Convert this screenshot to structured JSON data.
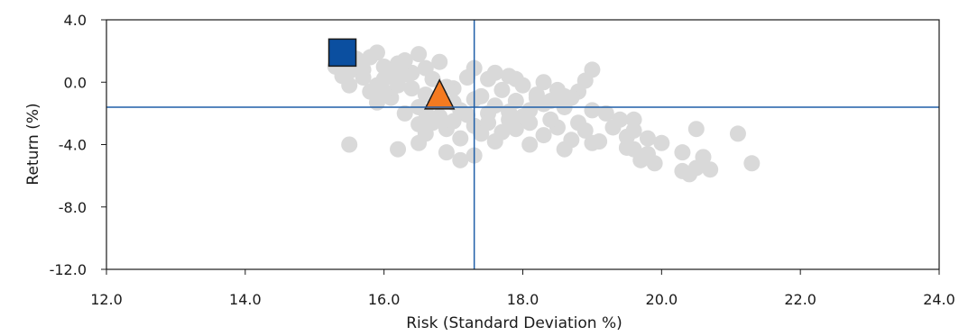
{
  "chart_data": {
    "type": "scatter",
    "xlabel": "Risk (Standard Deviation %)",
    "ylabel": "Return (%)",
    "xlim": [
      12.0,
      24.0
    ],
    "ylim": [
      -12.0,
      4.0
    ],
    "x_ticks": [
      "12.0",
      "14.0",
      "16.0",
      "18.0",
      "20.0",
      "22.0",
      "24.0"
    ],
    "y_ticks": [
      "4.0",
      "0.0",
      "-4.0",
      "-8.0",
      "-12.0"
    ],
    "grid": false,
    "reference_lines": {
      "x": 17.3,
      "y": -1.6,
      "color": "#1f5fa8"
    },
    "colors": {
      "cloud": "#d9d9d9",
      "square": "#0b4fa0",
      "triangle": "#f47a20",
      "frame": "#1a1a1a"
    },
    "cloud_points": [
      [
        15.3,
        1.0
      ],
      [
        15.4,
        0.4
      ],
      [
        15.5,
        -0.2
      ],
      [
        15.6,
        1.5
      ],
      [
        15.7,
        0.8
      ],
      [
        15.8,
        -0.6
      ],
      [
        15.9,
        1.9
      ],
      [
        16.0,
        0.2
      ],
      [
        16.1,
        -1.0
      ],
      [
        16.2,
        1.2
      ],
      [
        16.3,
        0.5
      ],
      [
        16.4,
        -0.4
      ],
      [
        16.5,
        1.8
      ],
      [
        16.6,
        0.9
      ],
      [
        15.9,
        -1.3
      ],
      [
        16.0,
        1.0
      ],
      [
        16.2,
        -0.2
      ],
      [
        16.4,
        0.6
      ],
      [
        16.6,
        -0.8
      ],
      [
        16.8,
        1.3
      ],
      [
        16.5,
        -1.6
      ],
      [
        16.3,
        -2.0
      ],
      [
        16.5,
        -2.7
      ],
      [
        16.6,
        -3.3
      ],
      [
        16.8,
        -2.2
      ],
      [
        16.9,
        -3.0
      ],
      [
        17.0,
        -2.5
      ],
      [
        17.1,
        -3.6
      ],
      [
        17.3,
        -2.8
      ],
      [
        17.4,
        -3.3
      ],
      [
        17.6,
        -3.8
      ],
      [
        17.5,
        -2.0
      ],
      [
        17.8,
        -2.4
      ],
      [
        17.9,
        -3.0
      ],
      [
        18.1,
        -2.6
      ],
      [
        18.3,
        -3.4
      ],
      [
        18.5,
        -2.9
      ],
      [
        18.7,
        -3.7
      ],
      [
        18.9,
        -3.1
      ],
      [
        19.1,
        -3.8
      ],
      [
        17.0,
        -0.4
      ],
      [
        17.2,
        0.3
      ],
      [
        17.3,
        0.9
      ],
      [
        17.5,
        0.2
      ],
      [
        17.7,
        -0.5
      ],
      [
        17.8,
        0.4
      ],
      [
        18.0,
        -0.2
      ],
      [
        18.2,
        -0.8
      ],
      [
        18.4,
        -1.2
      ],
      [
        18.6,
        -1.6
      ],
      [
        18.8,
        -0.6
      ],
      [
        19.0,
        0.8
      ],
      [
        19.0,
        -1.8
      ],
      [
        18.9,
        0.1
      ],
      [
        18.7,
        -1.0
      ],
      [
        18.5,
        -0.5
      ],
      [
        18.3,
        -1.4
      ],
      [
        18.1,
        -1.8
      ],
      [
        17.9,
        -1.2
      ],
      [
        17.6,
        -1.5
      ],
      [
        17.4,
        -0.9
      ],
      [
        16.9,
        -0.3
      ],
      [
        17.1,
        -1.8
      ],
      [
        17.3,
        -1.1
      ],
      [
        19.2,
        -2.0
      ],
      [
        19.4,
        -2.4
      ],
      [
        19.5,
        -3.5
      ],
      [
        19.6,
        -4.3
      ],
      [
        19.7,
        -5.0
      ],
      [
        19.8,
        -4.6
      ],
      [
        19.9,
        -5.2
      ],
      [
        19.5,
        -4.2
      ],
      [
        19.6,
        -2.4
      ],
      [
        19.8,
        -3.6
      ],
      [
        20.0,
        -3.9
      ],
      [
        20.3,
        -4.5
      ],
      [
        20.3,
        -5.7
      ],
      [
        20.4,
        -5.9
      ],
      [
        20.5,
        -5.5
      ],
      [
        20.5,
        -3.0
      ],
      [
        20.6,
        -4.8
      ],
      [
        20.7,
        -5.6
      ],
      [
        21.1,
        -3.3
      ],
      [
        21.3,
        -5.2
      ],
      [
        15.5,
        -4.0
      ],
      [
        16.2,
        -4.3
      ],
      [
        16.5,
        -3.9
      ],
      [
        16.9,
        -4.5
      ],
      [
        17.1,
        -5.0
      ],
      [
        17.3,
        -4.7
      ],
      [
        18.1,
        -4.0
      ],
      [
        18.6,
        -4.3
      ],
      [
        19.0,
        -3.9
      ],
      [
        16.3,
        1.4
      ],
      [
        16.1,
        0.6
      ],
      [
        15.8,
        1.6
      ],
      [
        15.6,
        1.2
      ],
      [
        15.7,
        0.3
      ],
      [
        16.7,
        0.2
      ],
      [
        16.8,
        -0.9
      ],
      [
        17.0,
        -1.3
      ],
      [
        17.2,
        -2.1
      ],
      [
        17.8,
        -1.9
      ],
      [
        18.0,
        -2.2
      ],
      [
        18.4,
        -2.4
      ],
      [
        18.8,
        -2.6
      ],
      [
        19.3,
        -2.9
      ],
      [
        19.6,
        -3.1
      ],
      [
        18.6,
        -0.9
      ],
      [
        18.2,
        -1.0
      ],
      [
        17.5,
        -2.6
      ],
      [
        17.7,
        -3.2
      ],
      [
        16.7,
        -2.6
      ],
      [
        16.6,
        -1.9
      ],
      [
        15.9,
        -0.2
      ],
      [
        16.0,
        -0.6
      ],
      [
        15.5,
        0.7
      ],
      [
        17.9,
        0.2
      ],
      [
        18.3,
        0.0
      ],
      [
        17.6,
        0.6
      ]
    ],
    "series": [
      {
        "marker": "square",
        "x": 15.4,
        "y": 1.9
      },
      {
        "marker": "triangle",
        "x": 16.8,
        "y": -0.9
      }
    ]
  }
}
